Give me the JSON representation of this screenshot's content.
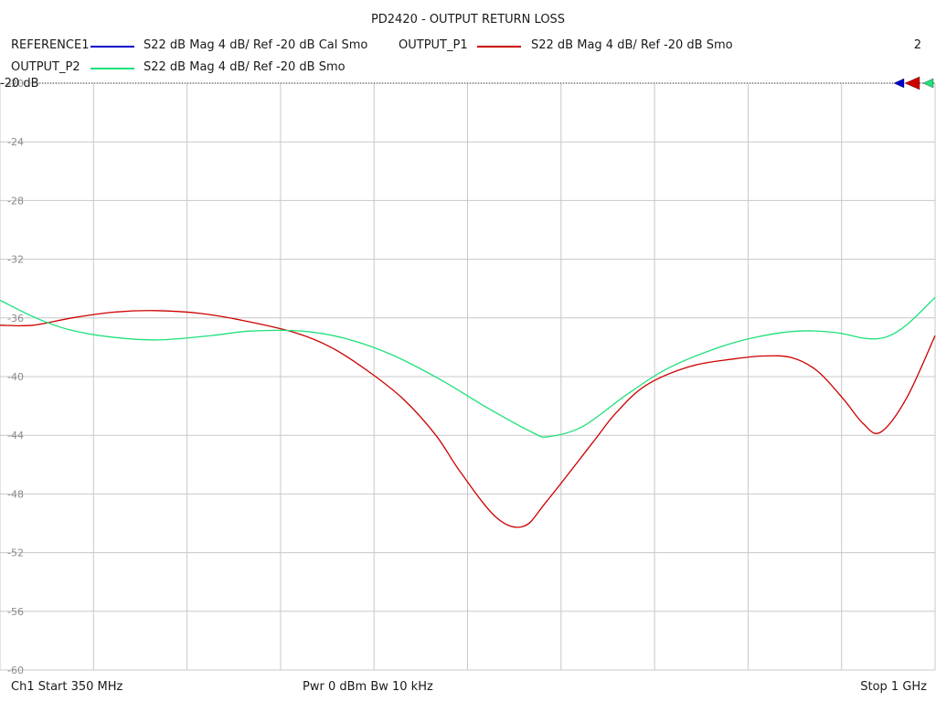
{
  "chart_data": {
    "type": "line",
    "title": "PD2420 - OUTPUT RETURN LOSS",
    "xlabel": "",
    "ylabel": "",
    "x_unit": "MHz",
    "xlim": [
      350,
      1000
    ],
    "ylim": [
      -60,
      -20
    ],
    "y_ticks": [
      "-20",
      "-24",
      "-28",
      "-32",
      "-36",
      "-40",
      "-44",
      "-48",
      "-52",
      "-56",
      "-60"
    ],
    "reference_label": "-20 dB",
    "grid": true,
    "legend_position": "top",
    "series": [
      {
        "name": "REFERENCE1",
        "description": "S22  dB Mag  4 dB/ Ref -20 dB  Cal Smo",
        "color": "#0000cc",
        "x": [],
        "y": []
      },
      {
        "name": "OUTPUT_P1",
        "description": "S22  dB Mag  4 dB/ Ref -20 dB  Smo",
        "color": "#cc0000",
        "x": [
          350,
          373,
          400,
          430,
          458,
          490,
          520,
          555,
          580,
          604,
          630,
          653,
          670,
          695,
          714,
          730,
          762,
          778,
          799,
          830,
          860,
          880,
          900,
          918,
          936,
          950,
          962,
          980,
          1000
        ],
        "y": [
          -36.5,
          -36.5,
          -36.0,
          -35.6,
          -35.5,
          -35.7,
          -36.2,
          -37.0,
          -38.0,
          -39.5,
          -41.5,
          -44.0,
          -46.5,
          -49.6,
          -50.2,
          -48.5,
          -44.5,
          -42.5,
          -40.6,
          -39.3,
          -38.8,
          -38.6,
          -38.7,
          -39.6,
          -41.5,
          -43.2,
          -43.8,
          -41.5,
          -37.2
        ]
      },
      {
        "name": "OUTPUT_P2",
        "description": "S22  dB Mag  4 dB/ Ref -20 dB  Smo",
        "color": "#1ee07a",
        "x": [
          350,
          375,
          398,
          427,
          460,
          497,
          524,
          560,
          590,
          622,
          656,
          690,
          720,
          731,
          755,
          786,
          815,
          850,
          876,
          905,
          931,
          952,
          966,
          980,
          1000
        ],
        "y": [
          -34.8,
          -36.0,
          -36.8,
          -37.3,
          -37.5,
          -37.2,
          -36.9,
          -36.9,
          -37.4,
          -38.5,
          -40.2,
          -42.2,
          -43.8,
          -44.1,
          -43.4,
          -41.2,
          -39.4,
          -38.0,
          -37.3,
          -36.9,
          -37.0,
          -37.4,
          -37.3,
          -36.5,
          -34.6
        ]
      }
    ]
  },
  "legend": {
    "page_number": "2"
  },
  "footer": {
    "left": "Ch1  Start  350 MHz",
    "center": "Pwr  0 dBm  Bw  10 kHz",
    "right": "Stop  1 GHz"
  }
}
